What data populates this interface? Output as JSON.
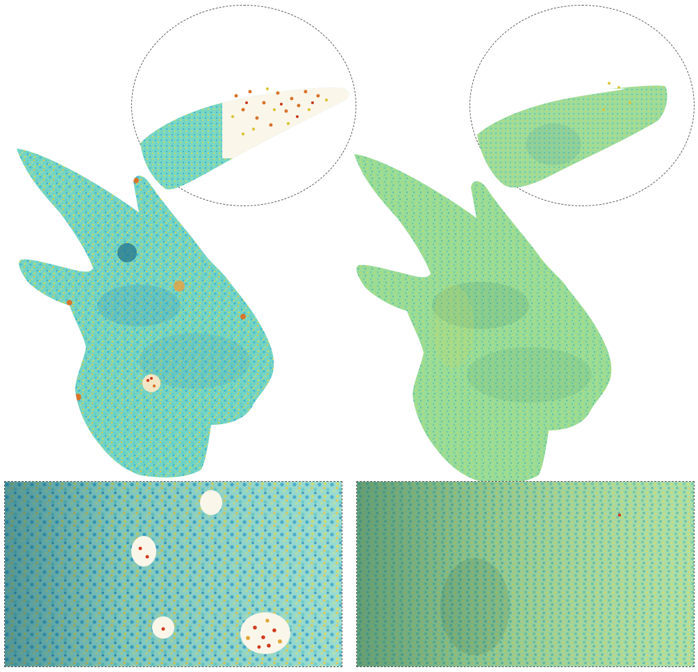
{
  "figure": {
    "left_panel": {
      "surface_palette": [
        "#5fd3c8",
        "#3fb6d6",
        "#7fdcc0",
        "#c9d85a",
        "#e2c23a",
        "#d8742a",
        "#c93a1e"
      ],
      "base_color": "#78d6c4",
      "has_holes_with_red_points": true
    },
    "right_panel": {
      "surface_palette": [
        "#8fdc9a",
        "#a8e08a",
        "#6fcf9e",
        "#c8d95e",
        "#58b8a8"
      ],
      "base_color": "#99dd96",
      "has_holes_with_red_points": false
    },
    "inset_style": "dashed",
    "insets_per_panel": [
      "circle-top-horn-tip",
      "rect-bottom-surface-closeup"
    ]
  }
}
